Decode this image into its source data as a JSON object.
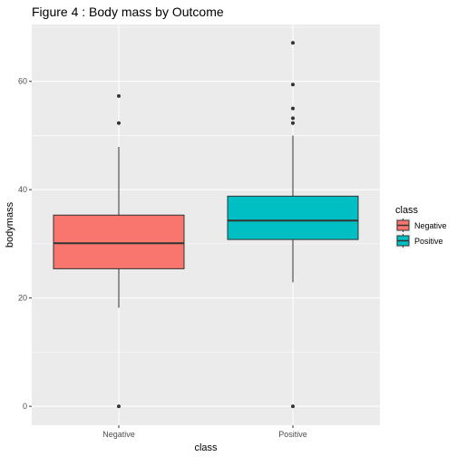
{
  "chart_data": {
    "type": "boxplot",
    "title": "Figure 4 : Body mass by Outcome",
    "xlabel": "class",
    "ylabel": "bodymass",
    "categories": [
      "Negative",
      "Positive"
    ],
    "ylim": [
      -3.5,
      70.5
    ],
    "yticks": [
      0,
      20,
      40,
      60
    ],
    "boxes": [
      {
        "name": "Negative",
        "color": "#F8766D",
        "q1": 25.4,
        "median": 30.1,
        "q3": 35.3,
        "whisker_low": 18.2,
        "whisker_high": 47.9,
        "outliers": [
          0,
          52.3,
          57.3
        ]
      },
      {
        "name": "Positive",
        "color": "#00BFC4",
        "q1": 30.8,
        "median": 34.3,
        "q3": 38.8,
        "whisker_low": 22.9,
        "whisker_high": 50.0,
        "outliers": [
          0,
          52.3,
          53.2,
          55.0,
          59.4,
          67.1
        ]
      }
    ],
    "legend": {
      "title": "class",
      "position": "right",
      "items": [
        {
          "label": "Negative",
          "color": "#F8766D"
        },
        {
          "label": "Positive",
          "color": "#00BFC4"
        }
      ]
    },
    "colors": {
      "panel_bg": "#EBEBEB",
      "grid": "#FFFFFF",
      "outline": "#333333"
    }
  }
}
